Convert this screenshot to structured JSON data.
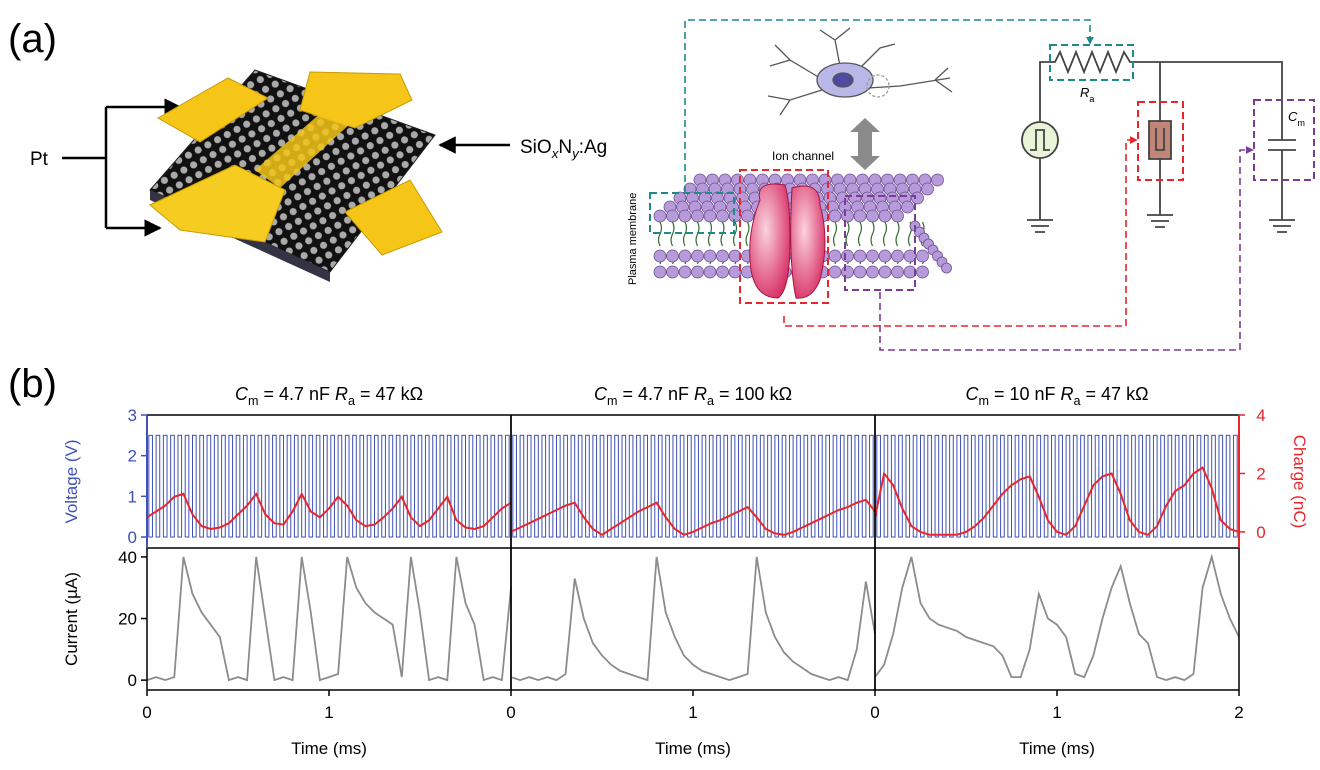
{
  "panel_a": {
    "label": "(a)",
    "pt_label": "Pt",
    "material_label": [
      "SiO",
      "x",
      "N",
      "y",
      ":Ag"
    ],
    "ion_channel_label": "Ion channel",
    "membrane_label": "Plasma membrane",
    "resistor_label": [
      "R",
      "a"
    ],
    "capacitor_label": [
      "C",
      "m"
    ]
  },
  "panel_b_label": "(b)",
  "chart_data": [
    {
      "type": "line",
      "title": [
        "C",
        "m",
        " = 4.7 nF ",
        "R",
        "a",
        " = 47 kΩ"
      ],
      "xlabel": "Time (ms)",
      "xlim": [
        0,
        2
      ],
      "xticks": [
        0,
        1
      ],
      "x": [
        0,
        0.05,
        0.1,
        0.15,
        0.2,
        0.25,
        0.3,
        0.35,
        0.4,
        0.45,
        0.5,
        0.55,
        0.6,
        0.65,
        0.7,
        0.75,
        0.8,
        0.85,
        0.9,
        0.95,
        1,
        1.05,
        1.1,
        1.15,
        1.2,
        1.25,
        1.3,
        1.35,
        1.4,
        1.45,
        1.5,
        1.55,
        1.6,
        1.65,
        1.7,
        1.75,
        1.8,
        1.85,
        1.9,
        1.95,
        2
      ],
      "top": {
        "ylim": [
          -0.27,
          3
        ],
        "yticks": [
          0,
          1,
          2,
          3
        ],
        "ylabel": "Voltage (V)",
        "y2lim": [
          -0.55,
          4
        ],
        "series": [
          {
            "color": "#3f51b5",
            "pulse_period": 0.04,
            "values": [
              0,
              2.5
            ]
          },
          {
            "color": "#e8262b",
            "axis": "y2",
            "values": [
              0.5,
              0.7,
              0.9,
              1.2,
              1.3,
              0.6,
              0.2,
              0.1,
              0.15,
              0.3,
              0.6,
              0.9,
              1.3,
              0.6,
              0.3,
              0.25,
              0.7,
              1.3,
              0.7,
              0.5,
              0.8,
              1.2,
              0.9,
              0.4,
              0.2,
              0.25,
              0.5,
              0.8,
              1.2,
              0.5,
              0.2,
              0.4,
              0.8,
              1.2,
              0.4,
              0.15,
              0.1,
              0.2,
              0.5,
              0.8,
              1.0
            ]
          }
        ]
      },
      "bottom": {
        "ylim": [
          -3.2,
          42.9
        ],
        "yticks": [
          0,
          20,
          40
        ],
        "ylabel": "Current (µA)",
        "series": [
          {
            "color": "#8c8c8c",
            "values": [
              0,
              1,
              0,
              1,
              40,
              28,
              22,
              18,
              14,
              0,
              1,
              0,
              40,
              20,
              0,
              1,
              0,
              40,
              22,
              0,
              1,
              2,
              40,
              30,
              25,
              22,
              20,
              18,
              1,
              40,
              22,
              0,
              1,
              0,
              40,
              25,
              18,
              0,
              1,
              0,
              30
            ]
          }
        ]
      }
    },
    {
      "type": "line",
      "title": [
        "C",
        "m",
        " = 4.7 nF ",
        "R",
        "a",
        " = 100 kΩ"
      ],
      "xlabel": "Time (ms)",
      "xlim": [
        0,
        2
      ],
      "xticks": [
        0,
        1
      ],
      "x": [
        0,
        0.05,
        0.1,
        0.15,
        0.2,
        0.25,
        0.3,
        0.35,
        0.4,
        0.45,
        0.5,
        0.55,
        0.6,
        0.65,
        0.7,
        0.75,
        0.8,
        0.85,
        0.9,
        0.95,
        1,
        1.05,
        1.1,
        1.15,
        1.2,
        1.25,
        1.3,
        1.35,
        1.4,
        1.45,
        1.5,
        1.55,
        1.6,
        1.65,
        1.7,
        1.75,
        1.8,
        1.85,
        1.9,
        1.95,
        2
      ],
      "top": {
        "ylim": [
          -0.27,
          3
        ],
        "y2lim": [
          -0.55,
          4
        ],
        "series": [
          {
            "color": "#3f51b5",
            "pulse_period": 0.04,
            "values": [
              0,
              2.5
            ]
          },
          {
            "color": "#e8262b",
            "axis": "y2",
            "values": [
              0,
              0.15,
              0.3,
              0.45,
              0.6,
              0.75,
              0.9,
              1.0,
              0.5,
              0.1,
              -0.1,
              0.1,
              0.3,
              0.5,
              0.7,
              0.85,
              1.0,
              0.5,
              0.1,
              -0.1,
              0,
              0.15,
              0.3,
              0.4,
              0.55,
              0.7,
              0.85,
              0.5,
              0.1,
              -0.05,
              -0.1,
              0,
              0.15,
              0.3,
              0.45,
              0.6,
              0.75,
              0.85,
              1.0,
              1.1,
              0.7
            ]
          }
        ]
      },
      "bottom": {
        "ylim": [
          -3.2,
          42.9
        ],
        "series": [
          {
            "color": "#8c8c8c",
            "values": [
              1,
              0,
              1,
              0,
              1,
              0,
              2,
              33,
              20,
              12,
              8,
              5,
              3,
              2,
              1,
              0,
              40,
              22,
              14,
              8,
              5,
              3,
              2,
              1,
              0,
              1,
              2,
              40,
              22,
              14,
              9,
              6,
              4,
              2,
              1,
              0,
              1,
              0,
              10,
              32,
              15
            ]
          }
        ]
      }
    },
    {
      "type": "line",
      "title": [
        "C",
        "m",
        " = 10 nF ",
        "R",
        "a",
        " = 47 kΩ"
      ],
      "xlabel": "Time (ms)",
      "xlim": [
        0,
        2
      ],
      "xticks": [
        0,
        1,
        2
      ],
      "x": [
        0,
        0.05,
        0.1,
        0.15,
        0.2,
        0.25,
        0.3,
        0.35,
        0.4,
        0.45,
        0.5,
        0.55,
        0.6,
        0.65,
        0.7,
        0.75,
        0.8,
        0.85,
        0.9,
        0.95,
        1,
        1.05,
        1.1,
        1.15,
        1.2,
        1.25,
        1.3,
        1.35,
        1.4,
        1.45,
        1.5,
        1.55,
        1.6,
        1.65,
        1.7,
        1.75,
        1.8,
        1.85,
        1.9,
        1.95,
        2
      ],
      "top": {
        "ylim": [
          -0.27,
          3
        ],
        "y2lim": [
          -0.55,
          4
        ],
        "y2ticks": [
          0,
          2,
          4
        ],
        "y2label": "Charge (nC)",
        "series": [
          {
            "color": "#3f51b5",
            "pulse_period": 0.04,
            "values": [
              0,
              2.5
            ]
          },
          {
            "color": "#e8262b",
            "axis": "y2",
            "values": [
              0.5,
              2.0,
              1.6,
              0.8,
              0.2,
              0,
              -0.1,
              -0.1,
              -0.1,
              -0.1,
              0,
              0.2,
              0.5,
              0.9,
              1.3,
              1.6,
              1.8,
              1.9,
              1.2,
              0.4,
              0,
              -0.1,
              0.2,
              0.9,
              1.6,
              1.9,
              2.0,
              1.3,
              0.4,
              0,
              -0.1,
              0.2,
              0.9,
              1.4,
              1.6,
              2.0,
              2.2,
              1.5,
              0.4,
              0.1,
              0
            ]
          }
        ]
      },
      "bottom": {
        "ylim": [
          -3.2,
          42.9
        ],
        "series": [
          {
            "color": "#8c8c8c",
            "values": [
              1,
              5,
              15,
              30,
              40,
              25,
              20,
              18,
              17,
              16,
              14,
              13,
              12,
              11,
              8,
              1,
              1,
              10,
              28,
              20,
              18,
              14,
              2,
              1,
              8,
              20,
              30,
              37,
              25,
              15,
              12,
              1,
              0,
              1,
              0,
              2,
              30,
              40,
              28,
              20,
              14
            ]
          }
        ]
      }
    }
  ]
}
